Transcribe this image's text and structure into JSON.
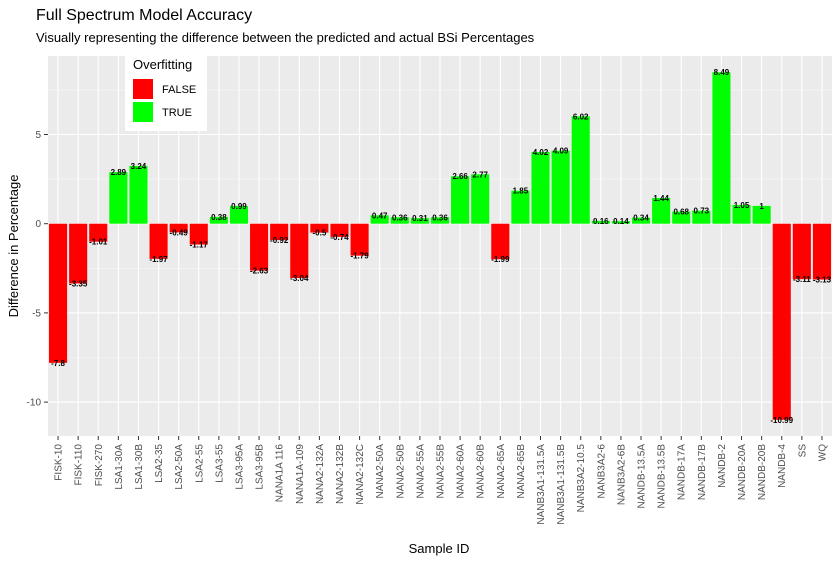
{
  "chart_data": {
    "type": "bar",
    "title": "Full Spectrum Model Accuracy",
    "subtitle": "Visually representing the difference between the predicted and actual BSi Percentages",
    "xlabel": "Sample ID",
    "ylabel": "Difference in Percentage",
    "ylim": [
      -11.9,
      9.4
    ],
    "yticks": [
      -10,
      -5,
      0,
      5
    ],
    "grid": true,
    "legend": {
      "title": "Overfitting",
      "position": "top-left",
      "entries": [
        {
          "label": "FALSE",
          "color": "#ff0000"
        },
        {
          "label": "TRUE",
          "color": "#00ff00"
        }
      ]
    },
    "categories": [
      "FISK-10",
      "FISK-110",
      "FISK-270",
      "LSA1-30A",
      "LSA1-30B",
      "LSA2-35",
      "LSA2-50A",
      "LSA2-55",
      "LSA3-55",
      "LSA3-95A",
      "LSA3-95B",
      "NANA1A 116",
      "NANA1A-109",
      "NANA2-132A",
      "NANA2-132B",
      "NANA2-132C",
      "NANA2-50A",
      "NANA2-50B",
      "NANA2-55A",
      "NANA2-55B",
      "NANA2-60A",
      "NANA2-60B",
      "NANA2-65A",
      "NANA2-65B",
      "NANB3A1-131.5A",
      "NANB3A1-131.5B",
      "NANB3A2-10.5",
      "NANB3A2-6",
      "NANB3A2-6B",
      "NANDB-13.5A",
      "NANDB-13.5B",
      "NANDB-17A",
      "NANDB-17B",
      "NANDB-2",
      "NANDB-20A",
      "NANDB-20B",
      "NANDB-4",
      "SS",
      "WQ"
    ],
    "values": [
      -7.8,
      -3.35,
      -1.01,
      2.89,
      3.24,
      -1.97,
      -0.49,
      -1.17,
      0.38,
      0.99,
      -2.63,
      -0.92,
      -3.04,
      -0.5,
      -0.74,
      -1.79,
      0.47,
      0.36,
      0.31,
      0.36,
      2.66,
      2.77,
      -1.99,
      1.85,
      4.02,
      4.09,
      6.02,
      0.16,
      0.14,
      0.34,
      1.44,
      0.68,
      0.73,
      8.49,
      1.05,
      1,
      -10.99,
      -3.11,
      -3.13
    ],
    "labels": [
      "-7.8",
      "-3.35",
      "-1.01",
      "2.89",
      "3.24",
      "-1.97",
      "-0.49",
      "-1.17",
      "0.38",
      "0.99",
      "-2.63",
      "-0.92",
      "-3.04",
      "-0.5",
      "-0.74",
      "-1.79",
      "0.47",
      "0.36",
      "0.31",
      "0.36",
      "2.66",
      "2.77",
      "-1.99",
      "1.85",
      "4.02",
      "4.09",
      "6.02",
      "0.16",
      "0.14",
      "0.34",
      "1.44",
      "0.68",
      "0.73",
      "8.49",
      "1.05",
      "1",
      "-10.99",
      "-3.11",
      "-3.13"
    ],
    "overfitting": [
      false,
      false,
      false,
      true,
      true,
      false,
      false,
      false,
      true,
      true,
      false,
      false,
      false,
      false,
      false,
      false,
      true,
      true,
      true,
      true,
      true,
      true,
      false,
      true,
      true,
      true,
      true,
      true,
      true,
      true,
      true,
      true,
      true,
      true,
      true,
      true,
      false,
      false,
      false
    ]
  }
}
